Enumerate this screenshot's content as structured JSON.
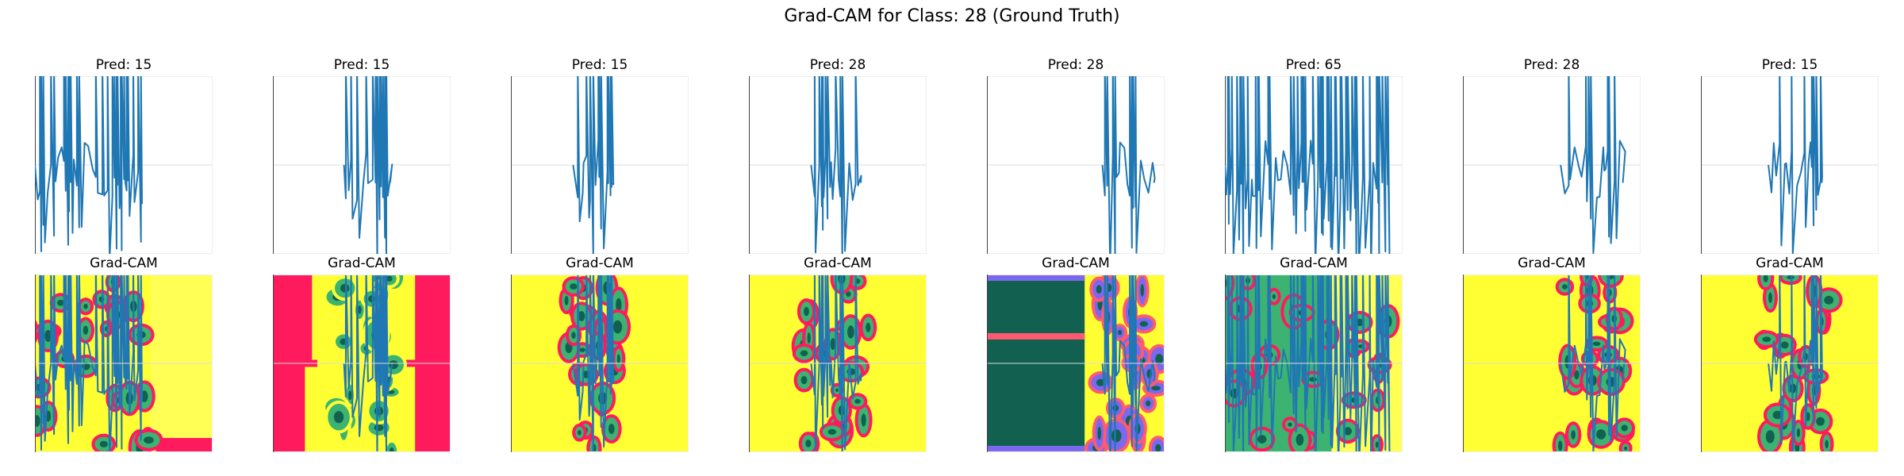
{
  "suptitle": "Grad-CAM for Class: 28 (Ground Truth)",
  "chart_data": {
    "type": "line",
    "title": "Grad-CAM for Class: 28 (Ground Truth)",
    "grid": true,
    "series_color": "#1f77b4",
    "panels": [
      {
        "pred_title": "Pred: 15",
        "pred_label": 15,
        "cam_title": "Grad-CAM",
        "cam_background": "#ffff33",
        "cam_accent": "#ff1a5e",
        "cam_deep": "#126150",
        "cam_mid": "#3cb371"
      },
      {
        "pred_title": "Pred: 15",
        "pred_label": 15,
        "cam_title": "Grad-CAM",
        "cam_background": "#ff1a5e",
        "cam_accent": "#ffff33",
        "cam_deep": "#126150",
        "cam_mid": "#3cb371"
      },
      {
        "pred_title": "Pred: 15",
        "pred_label": 15,
        "cam_title": "Grad-CAM",
        "cam_background": "#ffff33",
        "cam_accent": "#ff1a5e",
        "cam_deep": "#126150",
        "cam_mid": "#3cb371"
      },
      {
        "pred_title": "Pred: 28",
        "pred_label": 28,
        "cam_title": "Grad-CAM",
        "cam_background": "#ffff33",
        "cam_accent": "#ff1a5e",
        "cam_deep": "#126150",
        "cam_mid": "#3cb371"
      },
      {
        "pred_title": "Pred: 28",
        "pred_label": 28,
        "cam_title": "Grad-CAM",
        "cam_background": "#ffff33",
        "cam_accent": "#ff5a6e",
        "cam_deep": "#126150",
        "cam_mid": "#7b68ee"
      },
      {
        "pred_title": "Pred: 65",
        "pred_label": 65,
        "cam_title": "Grad-CAM",
        "cam_background": "#ffff33",
        "cam_accent": "#ff1a5e",
        "cam_deep": "#126150",
        "cam_mid": "#3cb371"
      },
      {
        "pred_title": "Pred: 28",
        "pred_label": 28,
        "cam_title": "Grad-CAM",
        "cam_background": "#ffff33",
        "cam_accent": "#ff1a5e",
        "cam_deep": "#126150",
        "cam_mid": "#3cb371"
      },
      {
        "pred_title": "Pred: 15",
        "pred_label": 15,
        "cam_title": "Grad-CAM",
        "cam_background": "#ffff33",
        "cam_accent": "#ff1a5e",
        "cam_deep": "#126150",
        "cam_mid": "#3cb371"
      }
    ]
  }
}
